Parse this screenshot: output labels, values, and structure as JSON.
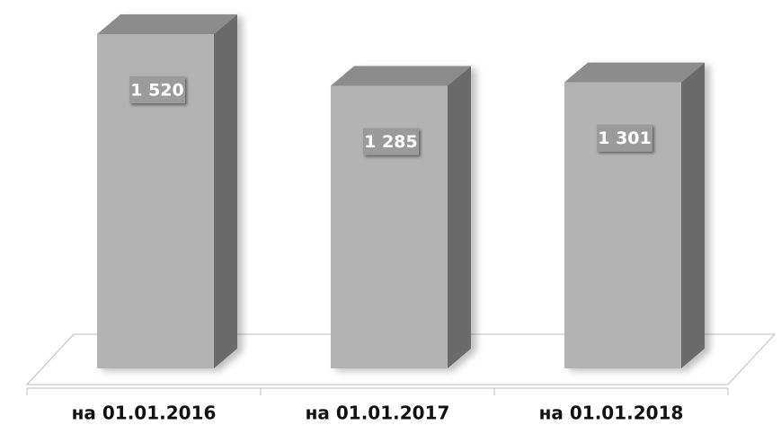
{
  "chart_data": {
    "type": "bar3d",
    "categories": [
      "на 01.01.2016",
      "на 01.01.2017",
      "на 01.01.2018"
    ],
    "values": [
      1520,
      1285,
      1301
    ],
    "value_labels": [
      "1 520",
      "1 285",
      "1 301"
    ],
    "color": "#b3b3b3"
  }
}
